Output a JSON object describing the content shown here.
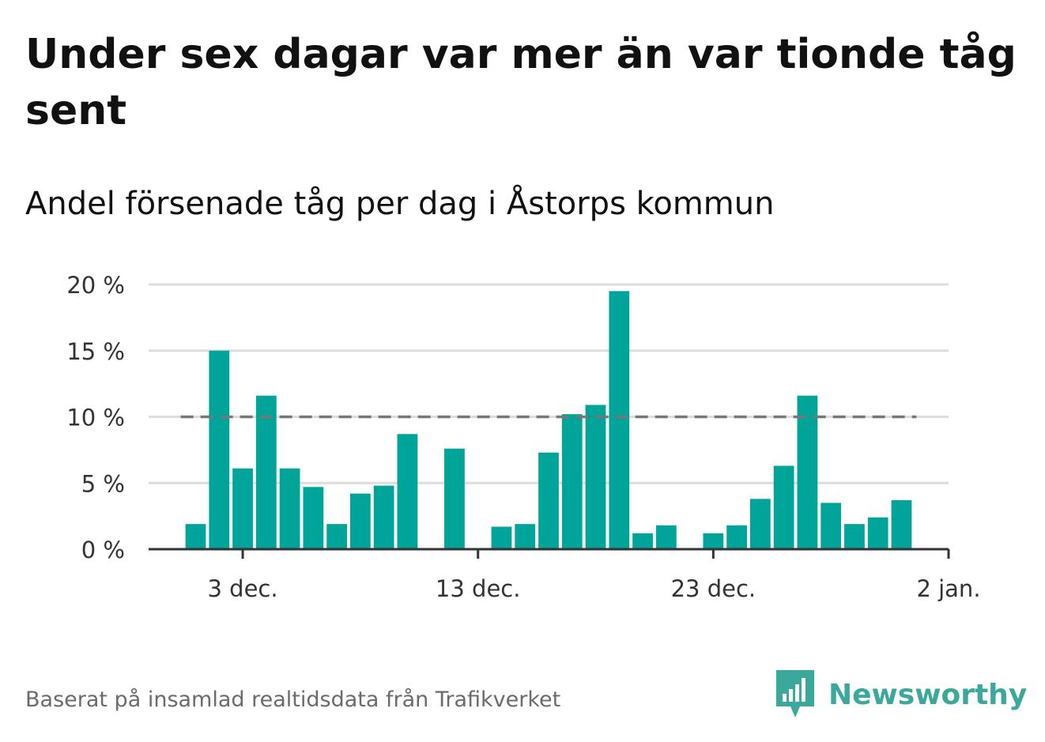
{
  "title": "Under sex dagar var mer än var tionde tåg sent",
  "subtitle": "Andel försenade tåg per dag i Åstorps kommun",
  "footer": "Baserat på insamlad realtidsdata från Trafikverket",
  "logo": {
    "text": "Newsworthy",
    "icon": "newsworthy-logo-icon",
    "color": "#3aa89b"
  },
  "colors": {
    "bar": "#00a499",
    "grid": "#dddddd",
    "reference_line": "#777777",
    "axis": "#333333"
  },
  "chart_data": {
    "type": "bar",
    "title": "Andel försenade tåg per dag i Åstorps kommun",
    "xlabel": "",
    "ylabel": "",
    "y_unit": "%",
    "ylim": [
      0,
      20
    ],
    "yticks": [
      0,
      5,
      10,
      15,
      20
    ],
    "ytick_labels": [
      "0 %",
      "5 %",
      "10 %",
      "15 %",
      "20 %"
    ],
    "xtick_labels": [
      "3 dec.",
      "13 dec.",
      "23 dec.",
      "2 jan."
    ],
    "xtick_dates": [
      "2023-12-03",
      "2023-12-13",
      "2023-12-23",
      "2024-01-02"
    ],
    "xlim": [
      "2023-11-29",
      "2024-01-02"
    ],
    "reference_line": {
      "value": 10,
      "style": "dashed",
      "from": "2023-12-01",
      "to": "2023-12-31"
    },
    "grid": true,
    "legend": "none",
    "x": [
      "2023-12-01",
      "2023-12-02",
      "2023-12-03",
      "2023-12-04",
      "2023-12-05",
      "2023-12-06",
      "2023-12-07",
      "2023-12-08",
      "2023-12-09",
      "2023-12-10",
      "2023-12-11",
      "2023-12-12",
      "2023-12-13",
      "2023-12-14",
      "2023-12-15",
      "2023-12-16",
      "2023-12-17",
      "2023-12-18",
      "2023-12-19",
      "2023-12-20",
      "2023-12-21",
      "2023-12-22",
      "2023-12-23",
      "2023-12-24",
      "2023-12-25",
      "2023-12-26",
      "2023-12-27",
      "2023-12-28",
      "2023-12-29",
      "2023-12-30",
      "2023-12-31"
    ],
    "values": [
      1.9,
      15.0,
      6.1,
      11.6,
      6.1,
      4.7,
      1.9,
      4.2,
      4.8,
      8.7,
      0,
      7.6,
      0,
      1.7,
      1.9,
      7.3,
      10.2,
      10.9,
      19.5,
      1.2,
      1.8,
      0,
      1.2,
      1.8,
      3.8,
      6.3,
      11.6,
      3.5,
      1.9,
      2.4,
      3.7
    ]
  }
}
